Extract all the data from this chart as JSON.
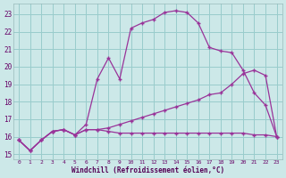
{
  "xlabel": "Windchill (Refroidissement éolien,°C)",
  "background_color": "#cce8e8",
  "grid_color": "#99cccc",
  "line_color": "#993399",
  "xlim_min": -0.5,
  "xlim_max": 23.5,
  "ylim_min": 14.7,
  "ylim_max": 23.6,
  "yticks": [
    15,
    16,
    17,
    18,
    19,
    20,
    21,
    22,
    23
  ],
  "xticks": [
    0,
    1,
    2,
    3,
    4,
    5,
    6,
    7,
    8,
    9,
    10,
    11,
    12,
    13,
    14,
    15,
    16,
    17,
    18,
    19,
    20,
    21,
    22,
    23
  ],
  "line1_x": [
    0,
    1,
    2,
    3,
    4,
    5,
    6,
    7,
    8,
    9,
    10,
    11,
    12,
    13,
    14,
    15,
    16,
    17,
    18,
    19,
    20,
    21,
    22,
    23
  ],
  "line1_y": [
    15.8,
    15.2,
    15.8,
    16.3,
    16.4,
    16.1,
    16.7,
    19.3,
    20.5,
    19.3,
    22.2,
    22.5,
    22.7,
    23.1,
    23.2,
    23.1,
    22.5,
    21.1,
    20.9,
    20.8,
    19.8,
    18.5,
    17.8,
    16.0
  ],
  "line2_x": [
    0,
    1,
    2,
    3,
    4,
    5,
    6,
    7,
    8,
    9,
    10,
    11,
    12,
    13,
    14,
    15,
    16,
    17,
    18,
    19,
    20,
    21,
    22,
    23
  ],
  "line2_y": [
    15.8,
    15.2,
    15.8,
    16.3,
    16.4,
    16.1,
    16.4,
    16.4,
    16.5,
    16.7,
    16.9,
    17.1,
    17.3,
    17.5,
    17.7,
    17.9,
    18.1,
    18.4,
    18.5,
    19.0,
    19.6,
    19.8,
    19.5,
    16.0
  ],
  "line3_x": [
    0,
    1,
    2,
    3,
    4,
    5,
    6,
    7,
    8,
    9,
    10,
    11,
    12,
    13,
    14,
    15,
    16,
    17,
    18,
    19,
    20,
    21,
    22,
    23
  ],
  "line3_y": [
    15.8,
    15.2,
    15.8,
    16.3,
    16.4,
    16.1,
    16.4,
    16.4,
    16.3,
    16.2,
    16.2,
    16.2,
    16.2,
    16.2,
    16.2,
    16.2,
    16.2,
    16.2,
    16.2,
    16.2,
    16.2,
    16.1,
    16.1,
    16.0
  ]
}
